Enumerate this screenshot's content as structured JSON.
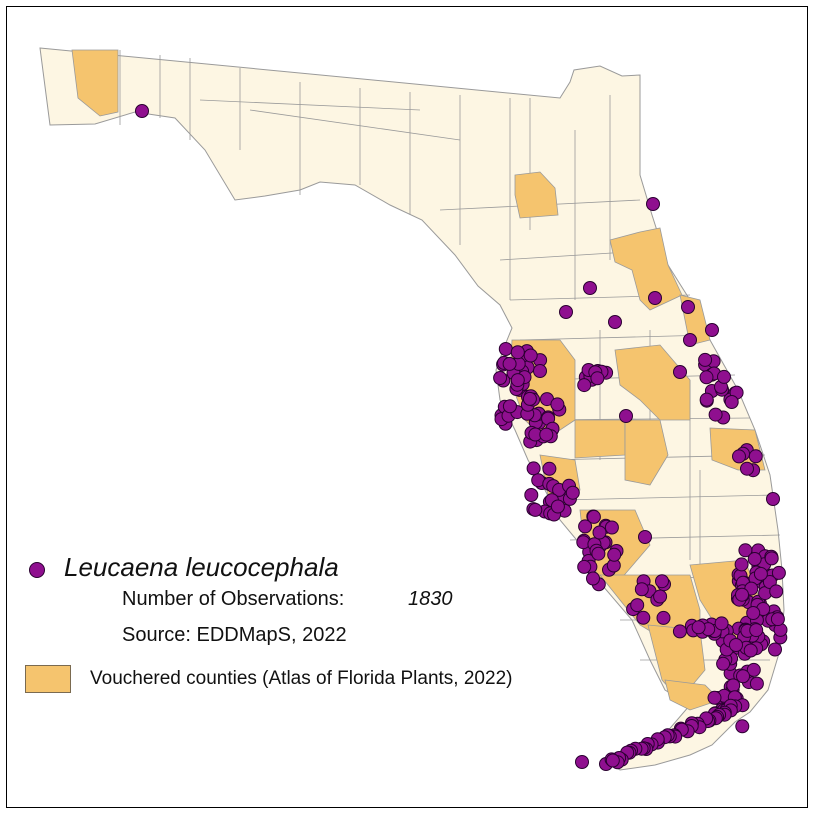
{
  "legend": {
    "species": "Leucaena leucocephala",
    "observations_label": "Number of Observations:",
    "observations_value": "1830",
    "source": "Source: EDDMapS, 2022",
    "vouchered": "Vouchered counties (Atlas of Florida Plants, 2022)"
  },
  "colors": {
    "county_fill": "#fdf6e3",
    "vouchered_fill": "#f5c46e",
    "county_line": "#9a9a9a",
    "point_fill": "#8f0f8f",
    "point_stroke": "#2a0030"
  }
}
